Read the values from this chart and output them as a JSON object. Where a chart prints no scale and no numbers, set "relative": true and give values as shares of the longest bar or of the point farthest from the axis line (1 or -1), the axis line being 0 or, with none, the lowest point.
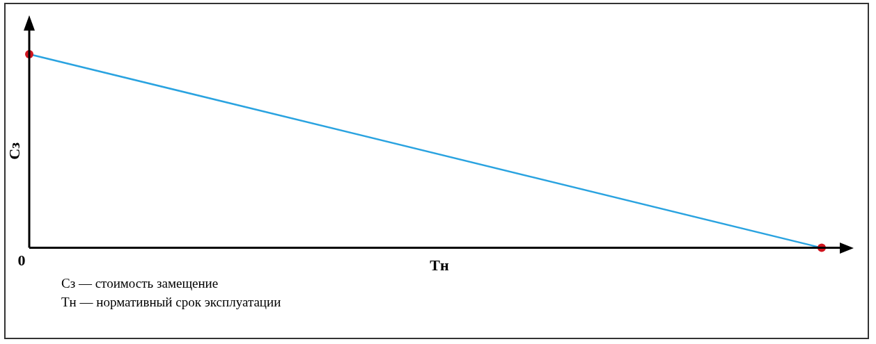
{
  "chart_data": {
    "type": "line",
    "relative": true,
    "ylabel": "Сз",
    "xlabel": "Тн",
    "categories": [
      null,
      null
    ],
    "series": [
      {
        "color": "#2aa3e0",
        "values": [
          1,
          0
        ]
      }
    ],
    "marker": "circle",
    "grid": false,
    "legend": false,
    "annotations": [
      "0",
      "Сз — стоимость замещение",
      "Тн — нормативный срок эксплуатации"
    ]
  }
}
